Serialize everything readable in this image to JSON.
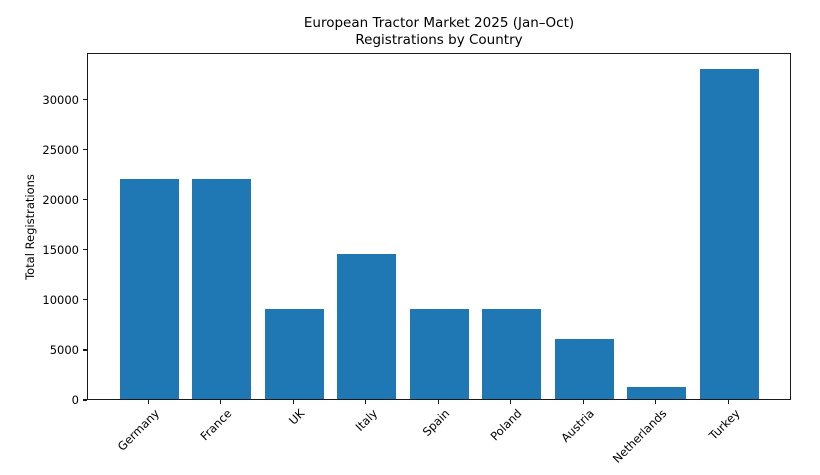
{
  "chart_data": {
    "type": "bar",
    "title": "European Tractor Market 2025 (Jan–Oct)",
    "subtitle": "Registrations by Country",
    "categories": [
      "Germany",
      "France",
      "UK",
      "Italy",
      "Spain",
      "Poland",
      "Austria",
      "Netherlands",
      "Turkey"
    ],
    "values": [
      22000,
      22000,
      9000,
      14500,
      9000,
      9000,
      6000,
      1200,
      33000
    ],
    "xlabel": "",
    "ylabel": "Total Registrations",
    "ylim": [
      0,
      34650
    ],
    "yticks": [
      0,
      5000,
      10000,
      15000,
      20000,
      25000,
      30000
    ],
    "ytick_labels": [
      "0",
      "5000",
      "10000",
      "15000",
      "20000",
      "25000",
      "30000"
    ],
    "x_tick_rotation": 45,
    "grid": false,
    "legend_position": "none",
    "bar_color": "#1f77b4",
    "background_color": "#ffffff",
    "text_color": "#000000"
  }
}
